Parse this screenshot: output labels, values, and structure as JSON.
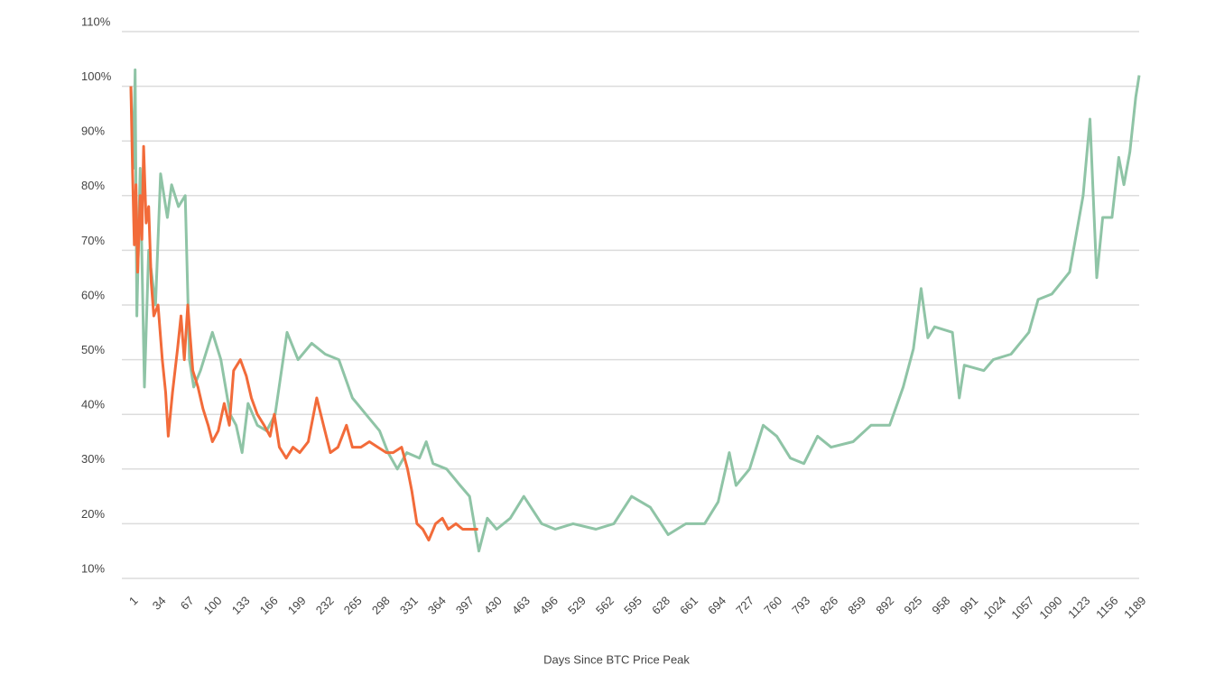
{
  "chart_data": {
    "type": "line",
    "xlabel": "Days Since BTC Price Peak",
    "xlim": [
      1,
      1189
    ],
    "xticks": [
      1,
      34,
      67,
      100,
      133,
      166,
      199,
      232,
      265,
      298,
      331,
      364,
      397,
      430,
      463,
      496,
      529,
      562,
      595,
      628,
      661,
      694,
      727,
      760,
      793,
      826,
      859,
      892,
      925,
      958,
      991,
      1024,
      1057,
      1090,
      1123,
      1156,
      1189
    ],
    "ylim": [
      10,
      110
    ],
    "yticks": [
      {
        "value": 10,
        "label": "10%"
      },
      {
        "value": 20,
        "label": "20%"
      },
      {
        "value": 30,
        "label": "30%"
      },
      {
        "value": 40,
        "label": "40%"
      },
      {
        "value": 50,
        "label": "50%"
      },
      {
        "value": 60,
        "label": "60%"
      },
      {
        "value": 70,
        "label": "70%"
      },
      {
        "value": 80,
        "label": "80%"
      },
      {
        "value": 90,
        "label": "90%"
      },
      {
        "value": 100,
        "label": "100%"
      },
      {
        "value": 110,
        "label": "110%"
      }
    ],
    "grid": true,
    "series": [
      {
        "color": "#8fc4a6",
        "x": [
          1,
          4,
          6,
          8,
          12,
          17,
          22,
          30,
          36,
          44,
          49,
          57,
          65,
          70,
          75,
          83,
          97,
          107,
          118,
          125,
          132,
          139,
          150,
          161,
          171,
          185,
          198,
          214,
          230,
          246,
          262,
          278,
          294,
          304,
          315,
          326,
          341,
          349,
          357,
          373,
          389,
          400,
          411,
          421,
          432,
          448,
          464,
          485,
          501,
          522,
          549,
          570,
          591,
          613,
          634,
          655,
          677,
          693,
          706,
          714,
          730,
          746,
          762,
          778,
          794,
          810,
          826,
          852,
          873,
          895,
          911,
          923,
          932,
          940,
          948,
          969,
          977,
          983,
          1006,
          1017,
          1038,
          1059,
          1070,
          1086,
          1107,
          1123,
          1131,
          1139,
          1146,
          1157,
          1165,
          1171,
          1178,
          1185,
          1189
        ],
        "values": [
          100,
          85,
          103,
          58,
          85,
          45,
          70,
          60,
          84,
          76,
          82,
          78,
          80,
          50,
          45,
          48,
          55,
          50,
          40,
          38,
          33,
          42,
          38,
          37,
          40,
          55,
          50,
          53,
          51,
          50,
          43,
          40,
          37,
          33,
          30,
          33,
          32,
          35,
          31,
          30,
          27,
          25,
          15,
          21,
          19,
          21,
          25,
          20,
          19,
          20,
          19,
          20,
          25,
          23,
          18,
          20,
          20,
          24,
          33,
          27,
          30,
          38,
          36,
          32,
          31,
          36,
          34,
          35,
          38,
          38,
          45,
          52,
          63,
          54,
          56,
          55,
          43,
          49,
          48,
          50,
          51,
          55,
          61,
          62,
          66,
          80,
          94,
          65,
          76,
          76,
          87,
          82,
          88,
          98,
          102
        ]
      },
      {
        "color": "#f26b3a",
        "x": [
          1,
          3,
          5,
          7,
          9,
          12,
          14,
          16,
          19,
          22,
          25,
          28,
          33,
          38,
          42,
          45,
          50,
          56,
          60,
          64,
          68,
          74,
          80,
          86,
          92,
          97,
          104,
          111,
          117,
          122,
          130,
          137,
          143,
          150,
          158,
          165,
          170,
          176,
          184,
          192,
          200,
          210,
          220,
          228,
          236,
          245,
          255,
          262,
          272,
          282,
          292,
          302,
          310,
          320,
          327,
          332,
          338,
          345,
          352,
          360,
          368,
          375,
          384,
          392,
          400,
          410
        ],
        "values": [
          100,
          84,
          71,
          82,
          66,
          80,
          72,
          89,
          75,
          78,
          64,
          58,
          60,
          50,
          44,
          36,
          44,
          52,
          58,
          50,
          60,
          48,
          45,
          41,
          38,
          35,
          37,
          42,
          38,
          48,
          50,
          47,
          43,
          40,
          38,
          36,
          40,
          34,
          32,
          34,
          33,
          35,
          43,
          38,
          33,
          34,
          38,
          34,
          34,
          35,
          34,
          33,
          33,
          34,
          30,
          26,
          20,
          19,
          17,
          20,
          21,
          19,
          20,
          19,
          19,
          19
        ]
      }
    ]
  }
}
